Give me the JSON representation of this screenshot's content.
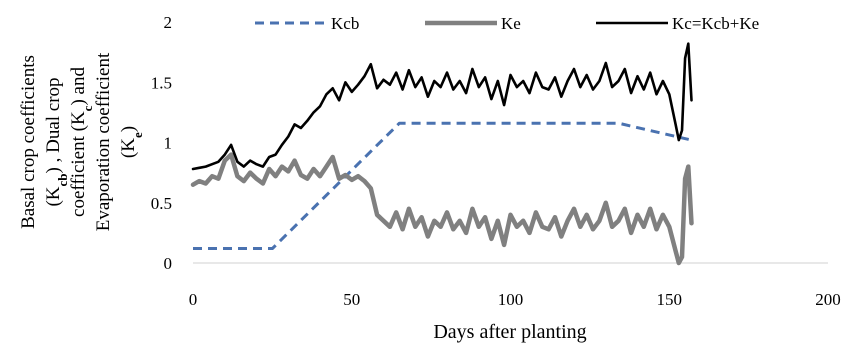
{
  "chart_data": {
    "type": "line",
    "xlabel": "Days after planting",
    "ylabel": {
      "line1": "Basal crop coefficients",
      "line2_pre": "(K",
      "line2_sub": "cb",
      "line2_post": ") , Dual crop",
      "line3_pre": "coefficient (K",
      "line3_sub": "c",
      "line3_post": ") and",
      "line4": "Evaporation coefficient",
      "line5_pre": "(K",
      "line5_sub": "e",
      "line5_post": ")"
    },
    "xlim": [
      0,
      200
    ],
    "ylim": [
      0,
      2
    ],
    "x_ticks": [
      "0",
      "50",
      "100",
      "150",
      "200"
    ],
    "y_ticks": [
      "0",
      "0.5",
      "1",
      "1.5",
      "2"
    ],
    "grid": false,
    "legend": "top",
    "series": [
      {
        "name": "Kcb",
        "color": "#4a72b0",
        "style": "dashed",
        "x": [
          0,
          25,
          65,
          134,
          157
        ],
        "y": [
          0.12,
          0.12,
          1.16,
          1.16,
          1.02
        ]
      },
      {
        "name": "Ke",
        "color": "#808080",
        "style": "solid-thick",
        "x": [
          0,
          2,
          4,
          6,
          8,
          10,
          12,
          14,
          16,
          18,
          20,
          22,
          24,
          26,
          28,
          30,
          32,
          34,
          36,
          38,
          40,
          42,
          44,
          46,
          48,
          50,
          52,
          54,
          56,
          58,
          60,
          62,
          64,
          66,
          68,
          70,
          72,
          74,
          76,
          78,
          80,
          82,
          84,
          86,
          88,
          90,
          92,
          94,
          96,
          98,
          100,
          102,
          104,
          106,
          108,
          110,
          112,
          114,
          116,
          118,
          120,
          122,
          124,
          126,
          128,
          130,
          132,
          134,
          136,
          138,
          140,
          142,
          144,
          146,
          148,
          150,
          152,
          153,
          154,
          155,
          156,
          157
        ],
        "y": [
          0.65,
          0.68,
          0.66,
          0.72,
          0.7,
          0.85,
          0.9,
          0.72,
          0.68,
          0.75,
          0.7,
          0.66,
          0.78,
          0.72,
          0.8,
          0.76,
          0.85,
          0.73,
          0.7,
          0.78,
          0.72,
          0.8,
          0.88,
          0.7,
          0.73,
          0.69,
          0.72,
          0.68,
          0.62,
          0.4,
          0.35,
          0.3,
          0.42,
          0.28,
          0.45,
          0.3,
          0.38,
          0.22,
          0.35,
          0.3,
          0.42,
          0.28,
          0.35,
          0.25,
          0.45,
          0.3,
          0.38,
          0.2,
          0.35,
          0.15,
          0.4,
          0.3,
          0.35,
          0.25,
          0.42,
          0.3,
          0.28,
          0.38,
          0.22,
          0.35,
          0.45,
          0.3,
          0.4,
          0.28,
          0.35,
          0.5,
          0.3,
          0.35,
          0.45,
          0.25,
          0.4,
          0.3,
          0.45,
          0.28,
          0.4,
          0.3,
          0.1,
          0.0,
          0.05,
          0.7,
          0.8,
          0.33
        ]
      },
      {
        "name": "Kc=Kcb+Ke",
        "color": "#000000",
        "style": "solid",
        "x": [
          0,
          2,
          4,
          6,
          8,
          10,
          12,
          14,
          16,
          18,
          20,
          22,
          24,
          26,
          28,
          30,
          32,
          34,
          36,
          38,
          40,
          42,
          44,
          46,
          48,
          50,
          52,
          54,
          56,
          58,
          60,
          62,
          64,
          66,
          68,
          70,
          72,
          74,
          76,
          78,
          80,
          82,
          84,
          86,
          88,
          90,
          92,
          94,
          96,
          98,
          100,
          102,
          104,
          106,
          108,
          110,
          112,
          114,
          116,
          118,
          120,
          122,
          124,
          126,
          128,
          130,
          132,
          134,
          136,
          138,
          140,
          142,
          144,
          146,
          148,
          150,
          152,
          153,
          154,
          155,
          156,
          157
        ],
        "y": [
          0.78,
          0.79,
          0.8,
          0.82,
          0.84,
          0.9,
          0.98,
          0.84,
          0.8,
          0.85,
          0.82,
          0.8,
          0.88,
          0.9,
          0.98,
          1.05,
          1.15,
          1.12,
          1.18,
          1.25,
          1.3,
          1.4,
          1.45,
          1.35,
          1.5,
          1.42,
          1.48,
          1.55,
          1.65,
          1.45,
          1.52,
          1.48,
          1.58,
          1.44,
          1.6,
          1.46,
          1.54,
          1.38,
          1.51,
          1.46,
          1.58,
          1.44,
          1.51,
          1.41,
          1.61,
          1.46,
          1.54,
          1.36,
          1.51,
          1.31,
          1.56,
          1.46,
          1.51,
          1.41,
          1.58,
          1.46,
          1.44,
          1.54,
          1.38,
          1.51,
          1.61,
          1.46,
          1.56,
          1.44,
          1.51,
          1.66,
          1.46,
          1.51,
          1.61,
          1.41,
          1.55,
          1.44,
          1.58,
          1.4,
          1.51,
          1.4,
          1.15,
          1.02,
          1.1,
          1.7,
          1.82,
          1.35
        ]
      }
    ]
  }
}
